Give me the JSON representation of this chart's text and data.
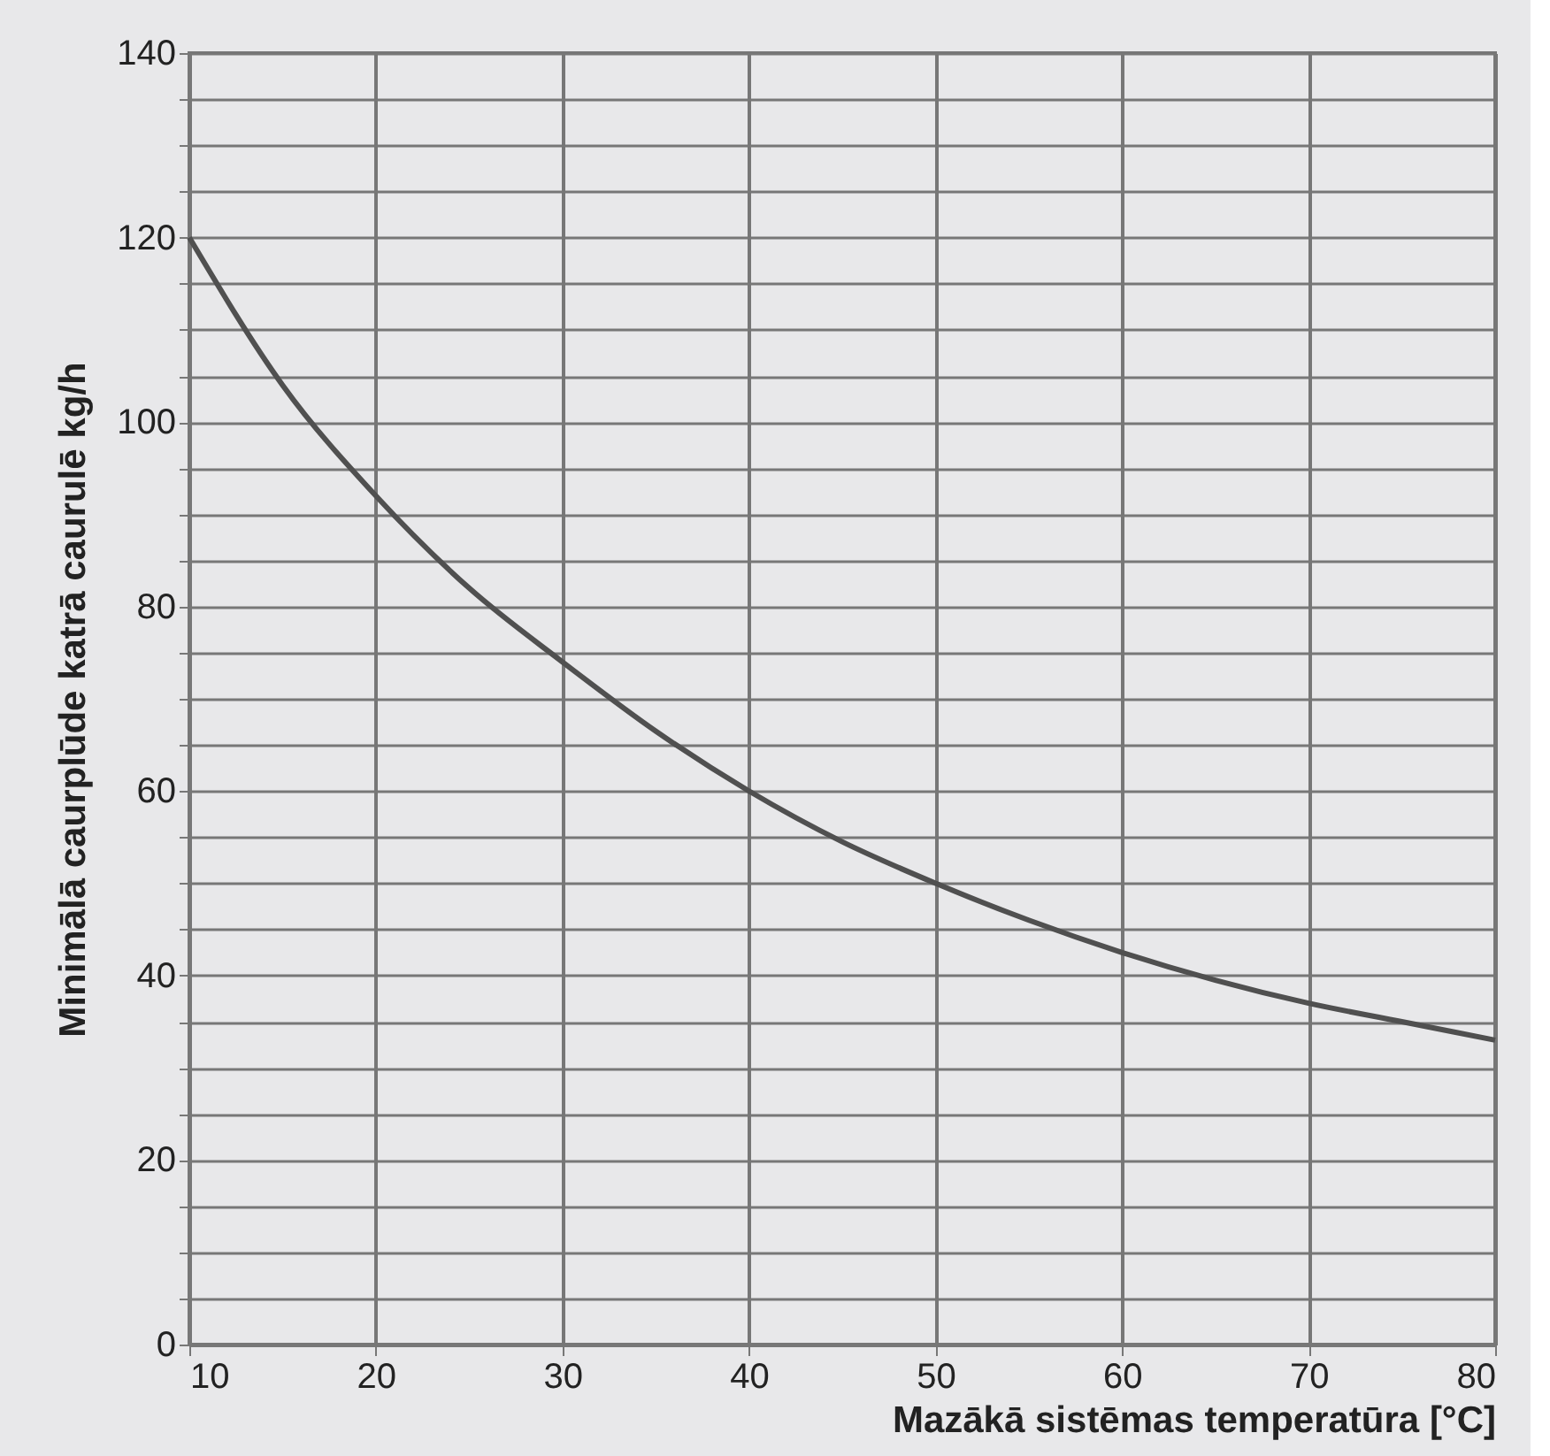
{
  "chart_data": {
    "type": "line",
    "xlabel": "Mazākā sistēmas temperatūra [°C]",
    "ylabel": "Minimālā caurplūde katrā caurulē kg/h",
    "x": [
      10,
      15,
      20,
      25,
      30,
      35,
      40,
      45,
      50,
      55,
      60,
      65,
      70,
      75,
      80
    ],
    "series": [
      {
        "color": "#505050",
        "values": [
          120,
          104,
          92,
          82,
          74,
          66.5,
          60,
          54.5,
          50,
          46,
          42.5,
          39.5,
          37,
          35,
          33
        ]
      }
    ],
    "xlim": [
      10,
      80
    ],
    "xticks": [
      10,
      20,
      30,
      40,
      50,
      60,
      70,
      80
    ],
    "ylim": [
      0,
      140
    ],
    "yticks": [
      0,
      {
        "value": 5,
        "label": null
      },
      {
        "value": 10,
        "label": null
      },
      {
        "value": 15,
        "label": null
      },
      20,
      {
        "value": 25,
        "label": null
      },
      {
        "value": 30,
        "label": null
      },
      {
        "value": 35,
        "label": null
      },
      40,
      {
        "value": 45,
        "label": null
      },
      {
        "value": 50,
        "label": null
      },
      {
        "value": 55,
        "label": null
      },
      60,
      {
        "value": 65,
        "label": null
      },
      {
        "value": 70,
        "label": null
      },
      {
        "value": 75,
        "label": null
      },
      80,
      {
        "value": 85,
        "label": null
      },
      {
        "value": 90,
        "label": null
      },
      {
        "value": 95,
        "label": null
      },
      100,
      {
        "value": 105,
        "label": null
      },
      {
        "value": 110,
        "label": null
      },
      {
        "value": 115,
        "label": null
      },
      120,
      {
        "value": 125,
        "label": null
      },
      {
        "value": 130,
        "label": null
      },
      {
        "value": 135,
        "label": null
      },
      140
    ],
    "grid": true,
    "marker": "none",
    "line_style": "solid"
  }
}
